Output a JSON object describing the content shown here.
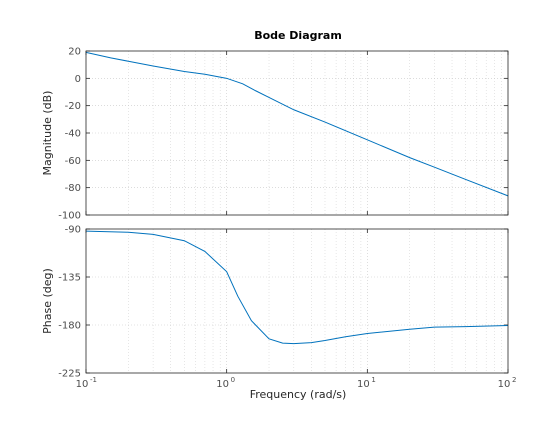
{
  "chart_data": {
    "type": "line",
    "title": "Bode Diagram",
    "xlabel": "Frequency  (rad/s)",
    "x_scale": "log",
    "xlim": [
      0.1,
      100
    ],
    "x_ticks": [
      {
        "base": "10",
        "exp": "-1",
        "value": 0.1
      },
      {
        "base": "10",
        "exp": "0",
        "value": 1
      },
      {
        "base": "10",
        "exp": "1",
        "value": 10
      },
      {
        "base": "10",
        "exp": "2",
        "value": 100
      }
    ],
    "grid": true,
    "subplots": [
      {
        "ylabel": "Magnitude (dB)",
        "ylim": [
          -100,
          20
        ],
        "yticks": [
          20,
          0,
          -20,
          -40,
          -60,
          -80,
          -100
        ],
        "series": [
          {
            "color": "#0072bd",
            "x": [
              0.1,
              0.15,
              0.2,
              0.3,
              0.5,
              0.7,
              1.0,
              1.3,
              1.6,
              2.0,
              3.0,
              5.0,
              10,
              20,
              30,
              50,
              100
            ],
            "y": [
              19,
              15,
              12.5,
              9,
              5,
              3,
              0,
              -4,
              -9,
              -14,
              -23,
              -32,
              -45,
              -58,
              -65,
              -74,
              -86
            ]
          }
        ]
      },
      {
        "ylabel": "Phase (deg)",
        "ylim": [
          -225,
          -90
        ],
        "yticks": [
          -90,
          -135,
          -180,
          -225
        ],
        "series": [
          {
            "color": "#0072bd",
            "x": [
              0.1,
              0.2,
              0.3,
              0.5,
              0.7,
              1.0,
              1.2,
              1.5,
              2.0,
              2.5,
              3.0,
              4.0,
              5.0,
              7.0,
              10,
              20,
              30,
              50,
              100
            ],
            "y": [
              -92,
              -93,
              -95,
              -101,
              -111,
              -130,
              -153,
              -176,
              -193,
              -197,
              -197.5,
              -196.5,
              -194.5,
              -191,
              -188,
              -184,
              -182,
              -181.5,
              -180.5
            ]
          }
        ]
      }
    ]
  }
}
